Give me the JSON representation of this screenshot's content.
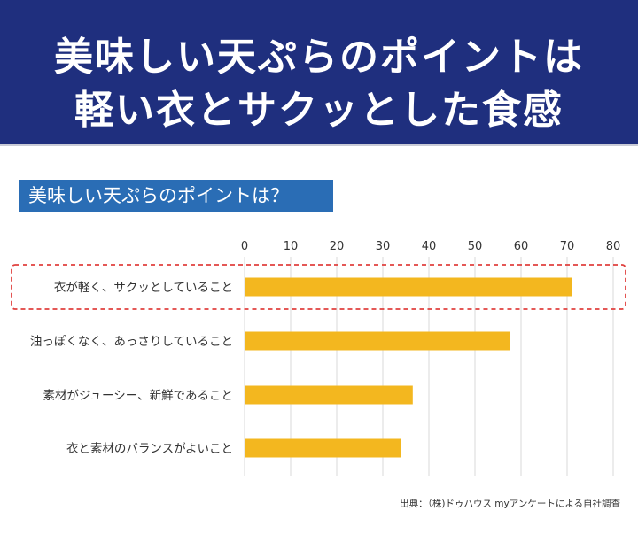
{
  "header": {
    "line1": "美味しい天ぷらのポイントは",
    "line2": "軽い衣とサクッとした食感"
  },
  "chart_data": {
    "type": "bar",
    "orientation": "horizontal",
    "title": "美味しい天ぷらのポイントは？",
    "categories": [
      "衣が軽く、サクッとしていること",
      "油っぽくなく、あっさりしていること",
      "素材がジューシー、新鮮であること",
      "衣と素材のバランスがよいこと"
    ],
    "values": [
      71,
      57.5,
      36.5,
      34
    ],
    "xlim": [
      0,
      80
    ],
    "ticks": [
      0,
      10,
      20,
      30,
      40,
      50,
      60,
      70,
      80
    ],
    "grid": true,
    "highlighted_category_index": 0
  },
  "source": "出典：（株)ドゥハウス myアンケートによる自社調査",
  "colors": {
    "header_bg": "#1f2f7e",
    "title_bg": "#2a6db5",
    "bar": "#f3b71f",
    "grid": "#d9d9d9",
    "highlight": "#e0413f"
  }
}
